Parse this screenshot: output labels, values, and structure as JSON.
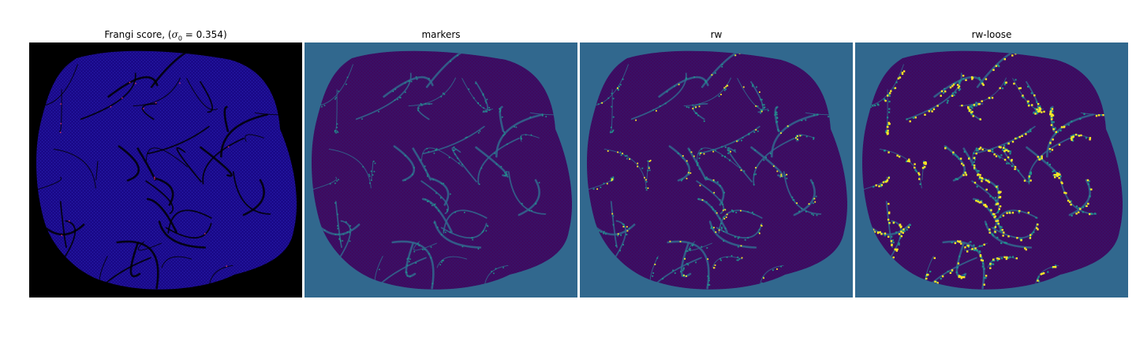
{
  "panels": [
    {
      "title_prefix": "Frangi score, (",
      "title_math": "σ",
      "title_sub": "0",
      "title_suffix": " = 0.354)",
      "colormap": "gnuplot2",
      "background": "#000000"
    },
    {
      "title": "markers",
      "colormap": "viridis",
      "background": "#31688e"
    },
    {
      "title": "rw",
      "colormap": "viridis",
      "background": "#31688e"
    },
    {
      "title": "rw-loose",
      "colormap": "viridis",
      "background": "#31688e"
    }
  ],
  "colors": {
    "frangi_fill": "#1a0a8a",
    "frangi_vessel": "#000000",
    "frangi_highlight": "#d0306a",
    "seg_fill": "#3b0f64",
    "seg_texture": "#440154",
    "seg_marker": "#21918c",
    "seg_bright": "#fde725"
  }
}
